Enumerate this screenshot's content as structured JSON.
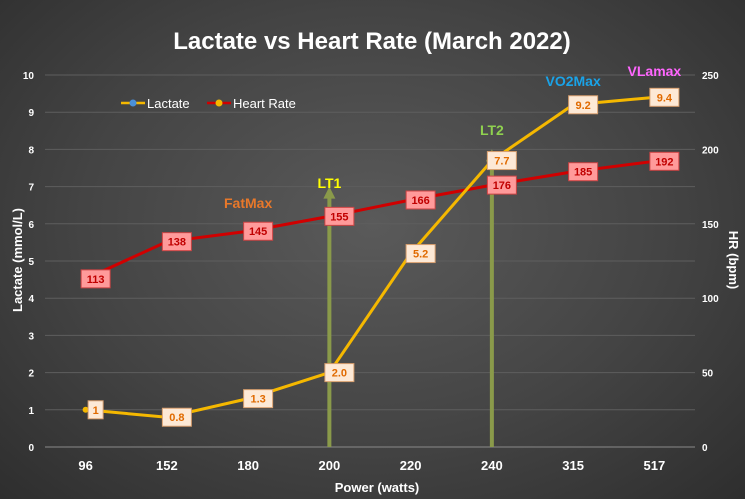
{
  "chart_data": {
    "type": "line",
    "title": "Lactate vs Heart Rate (March 2022)",
    "xlabel": "Power (watts)",
    "ylabel_left": "Lactate (mmol/L)",
    "ylabel_right": "HR (bpm)",
    "categories": [
      "96",
      "152",
      "180",
      "200",
      "220",
      "240",
      "315",
      "517"
    ],
    "ylim_left": [
      0,
      10
    ],
    "yticks_left": [
      "0",
      "1",
      "2",
      "3",
      "4",
      "5",
      "6",
      "7",
      "8",
      "9",
      "10"
    ],
    "ylim_right": [
      0,
      250
    ],
    "yticks_right": [
      "0",
      "50",
      "100",
      "150",
      "200",
      "250"
    ],
    "grid": true,
    "legend_position": "top-left",
    "series": [
      {
        "name": "Lactate",
        "axis": "left",
        "color": "#f5b800",
        "label_color": "#e06a00",
        "values": [
          1,
          0.8,
          1.3,
          2.0,
          5.2,
          7.7,
          9.2,
          9.4
        ],
        "labels": [
          "1",
          "0.8",
          "1.3",
          "2.0",
          "5.2",
          "7.7",
          "9.2",
          "9.4"
        ]
      },
      {
        "name": "Heart Rate",
        "axis": "right",
        "color": "#d00000",
        "label_color": "#c00000",
        "values": [
          113,
          138,
          145,
          155,
          166,
          176,
          185,
          192
        ],
        "labels": [
          "113",
          "138",
          "145",
          "155",
          "166",
          "176",
          "185",
          "192"
        ]
      }
    ],
    "annotations": [
      {
        "text": "FatMax",
        "color": "#e8782a",
        "category": "180"
      },
      {
        "text": "LT1",
        "color": "#ffff00",
        "category": "200",
        "arrow": true,
        "arrow_top": 7
      },
      {
        "text": "LT2",
        "color": "#8fd14f",
        "category": "240",
        "arrow": true,
        "arrow_top": 8
      },
      {
        "text": "VO2Max",
        "color": "#1aa3e8",
        "category": "315"
      },
      {
        "text": "VLamax",
        "color": "#ff66ff",
        "category": "517"
      }
    ],
    "arrow_color": "#8a9a4a"
  }
}
